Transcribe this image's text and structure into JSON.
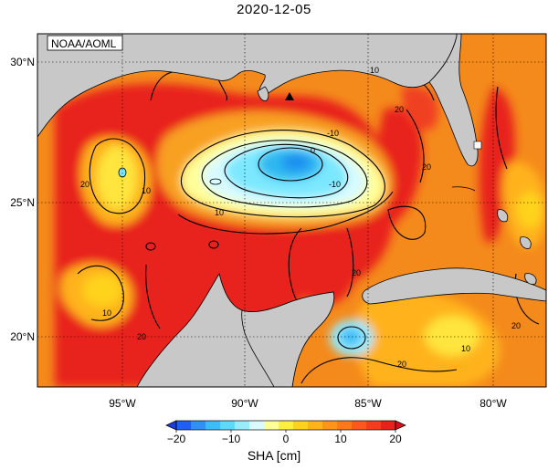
{
  "title": "2020-12-05",
  "credit": "NOAA/AOML",
  "map": {
    "lat_ticks": [
      "30°N",
      "25°N",
      "20°N"
    ],
    "lon_ticks": [
      "95°W",
      "90°W",
      "85°W",
      "80°W"
    ],
    "contour_labels": {
      "c1": "10",
      "c2": "20",
      "c3": "-10",
      "c4": "0",
      "c5": "10",
      "c6": "-10",
      "c7": "20",
      "c8": "10",
      "c9": "20",
      "c10": "10",
      "c11": "20",
      "c12": "20",
      "c13": "20",
      "c14": "10",
      "c15": "20"
    },
    "colors": {
      "land": "#c8c8c8",
      "ocean_base": "#f48a1c",
      "high": "#e8221a",
      "mid": "#ffb21e",
      "low": "#ffe53c",
      "cool": "#7be8ff",
      "cold": "#2fb8f0"
    }
  },
  "colorbar": {
    "ticks": [
      "−20",
      "−10",
      "0",
      "10",
      "20"
    ],
    "label": "SHA [cm]",
    "colors": [
      "#1f5ff5",
      "#2f90f5",
      "#3cbdf7",
      "#5fd9fb",
      "#98ecfc",
      "#d9fbff",
      "#ffff98",
      "#fff040",
      "#ffd21e",
      "#ffb31a",
      "#ff941a",
      "#ff781a",
      "#ff581e",
      "#f53c1e",
      "#e8221a"
    ]
  }
}
